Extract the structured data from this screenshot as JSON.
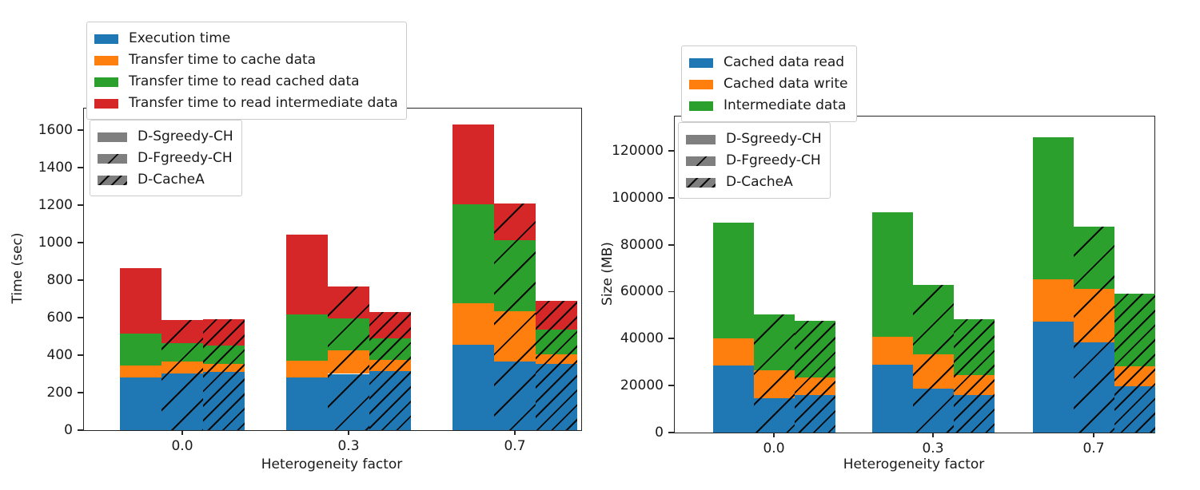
{
  "figure": {
    "background": "#ffffff"
  },
  "chart_data": [
    {
      "type": "bar",
      "stacked": true,
      "grouped": true,
      "title": "",
      "xlabel": "Heterogeneity factor",
      "ylabel": "Time (sec)",
      "categories": [
        "0.0",
        "0.3",
        "0.7"
      ],
      "bar_series": [
        "D-Sgreedy-CH",
        "D-Fgreedy-CH",
        "D-CacheA"
      ],
      "bar_hatches": [
        "none",
        "sparse-diagonal",
        "dense-diagonal"
      ],
      "stack_labels": [
        "Execution time",
        "Transfer time to cache data",
        "Transfer time to read cached data",
        "Transfer time to read intermediate data"
      ],
      "stack_colors": [
        "#1f77b4",
        "#ff7f0e",
        "#2ca02c",
        "#d62728"
      ],
      "legend_patch_color": "#7f7f7f",
      "ylim": [
        0,
        1715
      ],
      "yticks": [
        0,
        200,
        400,
        600,
        800,
        1000,
        1200,
        1400,
        1600
      ],
      "grid": false,
      "legend_positions": {
        "stacks": "upper-left-outside",
        "series": "upper-left-inside"
      },
      "values": [
        [
          [
            280,
            63,
            173,
            350
          ],
          [
            304,
            60,
            100,
            125
          ],
          [
            311,
            43,
            98,
            140
          ]
        ],
        [
          [
            282,
            89,
            245,
            428
          ],
          [
            300,
            124,
            170,
            173
          ],
          [
            317,
            57,
            114,
            142
          ]
        ],
        [
          [
            455,
            220,
            528,
            428
          ],
          [
            365,
            268,
            378,
            196
          ],
          [
            353,
            50,
            134,
            152
          ]
        ]
      ]
    },
    {
      "type": "bar",
      "stacked": true,
      "grouped": true,
      "title": "",
      "xlabel": "Heterogeneity factor",
      "ylabel": "Size (MB)",
      "categories": [
        "0.0",
        "0.3",
        "0.7"
      ],
      "bar_series": [
        "D-Sgreedy-CH",
        "D-Fgreedy-CH",
        "D-CacheA"
      ],
      "bar_hatches": [
        "none",
        "sparse-diagonal",
        "dense-diagonal"
      ],
      "stack_labels": [
        "Cached data read",
        "Cached data write",
        "Intermediate data"
      ],
      "stack_colors": [
        "#1f77b4",
        "#ff7f0e",
        "#2ca02c"
      ],
      "legend_patch_color": "#7f7f7f",
      "ylim": [
        0,
        134600
      ],
      "yticks": [
        0,
        20000,
        40000,
        60000,
        80000,
        100000,
        120000
      ],
      "grid": false,
      "legend_positions": {
        "stacks": "upper-left-inside",
        "series": "upper-left-inside"
      },
      "values": [
        [
          [
            28700,
            11300,
            49500
          ],
          [
            14700,
            11700,
            24000
          ],
          [
            15900,
            7700,
            24000
          ]
        ],
        [
          [
            28900,
            11900,
            52900
          ],
          [
            18700,
            14700,
            29500
          ],
          [
            15900,
            8500,
            24000
          ]
        ],
        [
          [
            47300,
            18100,
            60400
          ],
          [
            38500,
            22700,
            26600
          ],
          [
            19800,
            8500,
            30900
          ]
        ]
      ]
    }
  ]
}
